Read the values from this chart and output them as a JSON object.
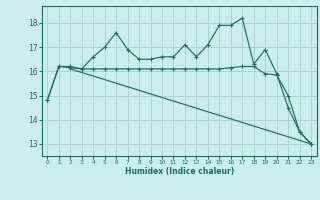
{
  "xlabel": "Humidex (Indice chaleur)",
  "bg_color": "#cceee8",
  "grid_color": "#aad4ce",
  "line_color": "#1a6e65",
  "xlim": [
    -0.5,
    23.5
  ],
  "ylim": [
    12.5,
    18.7
  ],
  "yticks": [
    13,
    14,
    15,
    16,
    17,
    18
  ],
  "xticks": [
    0,
    1,
    2,
    3,
    4,
    5,
    6,
    7,
    8,
    9,
    10,
    11,
    12,
    13,
    14,
    15,
    16,
    17,
    18,
    19,
    20,
    21,
    22,
    23
  ],
  "line1_x": [
    0,
    1,
    2,
    3,
    4,
    5,
    6,
    7,
    8,
    9,
    10,
    11,
    12,
    13,
    14,
    15,
    16,
    17,
    18,
    19,
    20,
    21,
    22,
    23
  ],
  "line1_y": [
    14.8,
    16.2,
    16.2,
    16.1,
    16.6,
    17.0,
    17.6,
    16.9,
    16.5,
    16.5,
    16.6,
    16.6,
    17.1,
    16.6,
    17.1,
    17.9,
    17.9,
    18.2,
    16.3,
    16.9,
    15.9,
    14.5,
    13.5,
    13.0
  ],
  "line2_x": [
    0,
    1,
    2,
    3,
    4,
    5,
    6,
    7,
    8,
    9,
    10,
    11,
    12,
    13,
    14,
    15,
    16,
    17,
    18,
    19,
    20,
    21,
    22,
    23
  ],
  "line2_y": [
    14.8,
    16.2,
    16.15,
    16.1,
    16.1,
    16.1,
    16.1,
    16.1,
    16.1,
    16.1,
    16.1,
    16.1,
    16.1,
    16.1,
    16.1,
    16.1,
    16.15,
    16.2,
    16.2,
    15.9,
    15.85,
    15.0,
    13.5,
    13.0
  ],
  "line3_x": [
    2,
    23
  ],
  "line3_y": [
    16.1,
    13.0
  ]
}
